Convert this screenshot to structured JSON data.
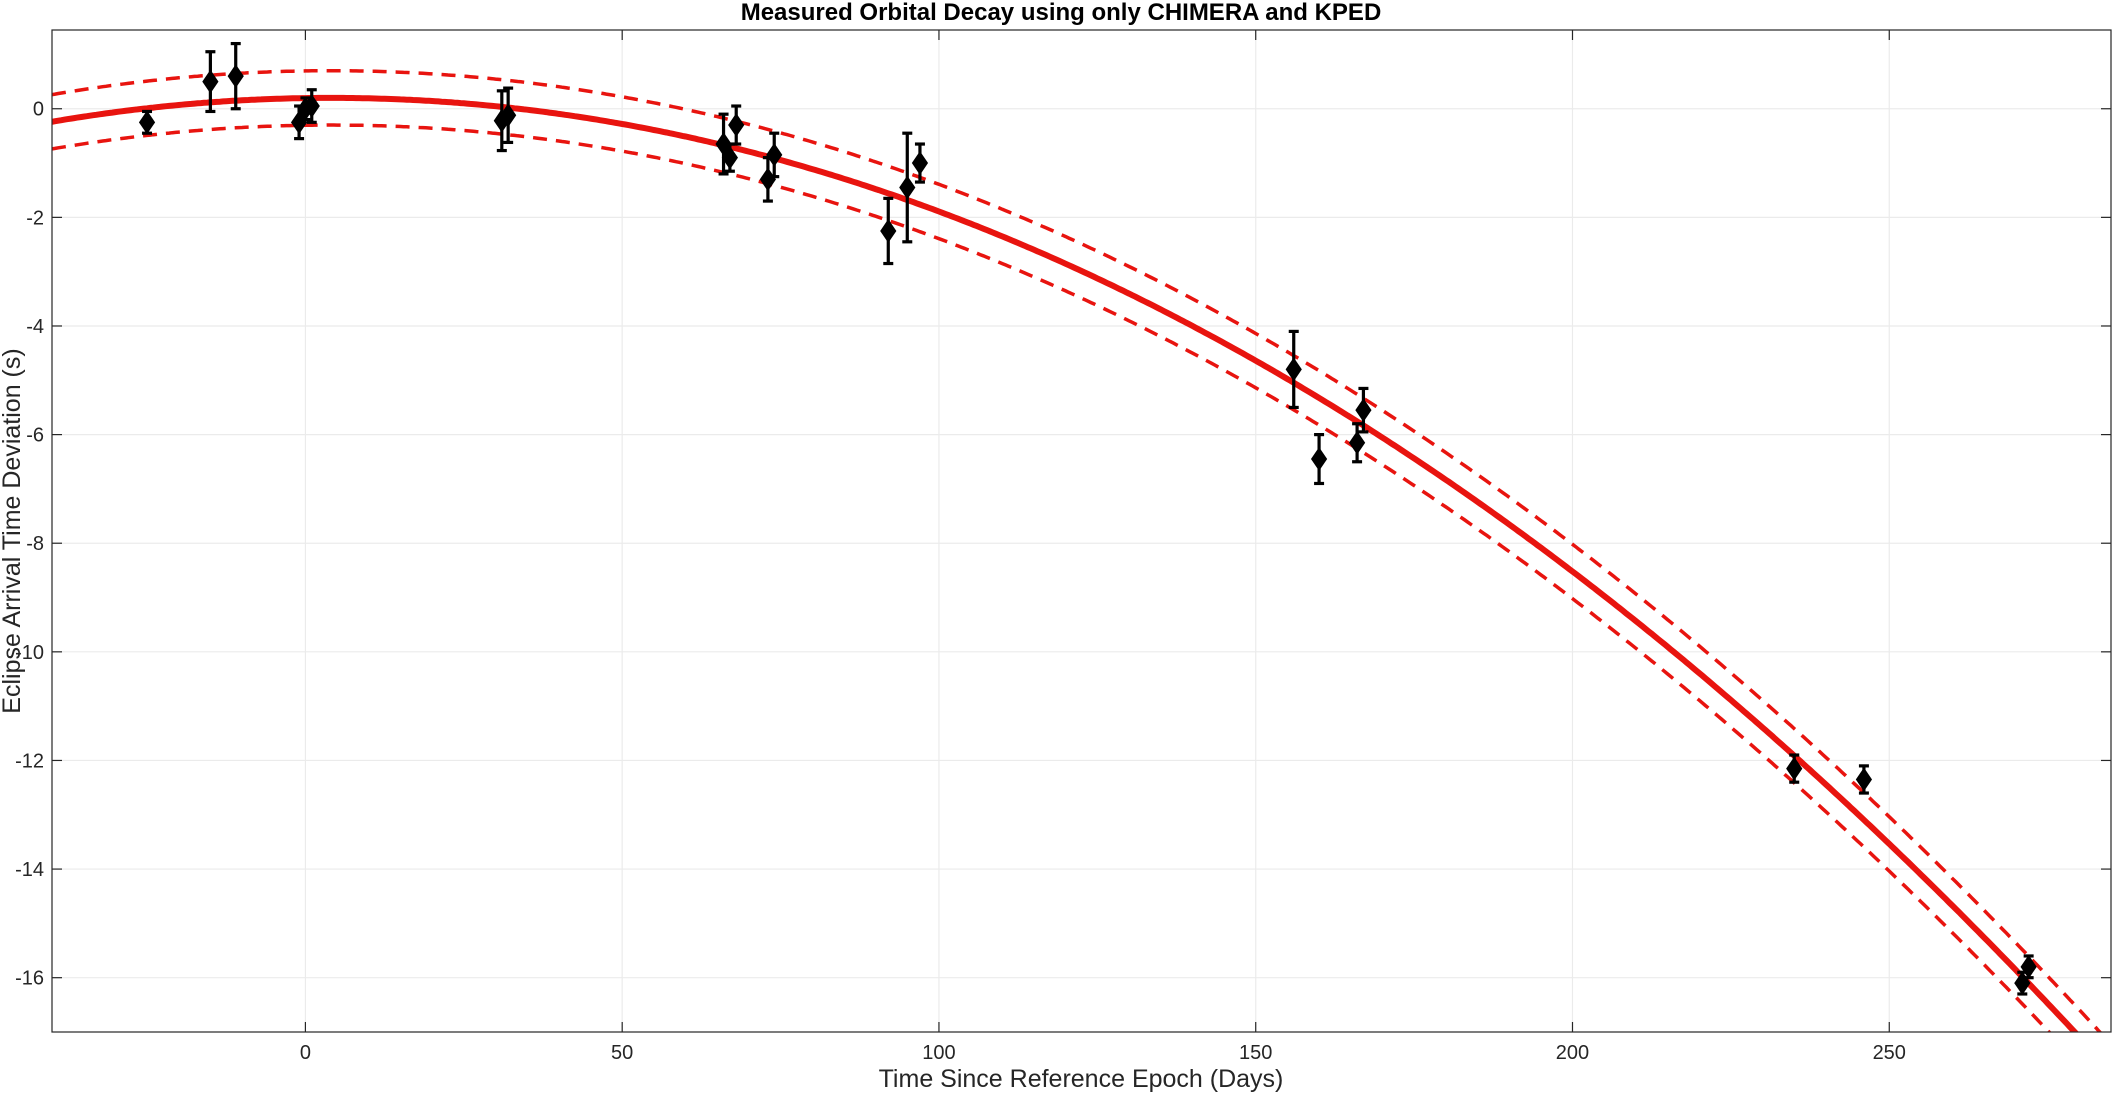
{
  "chart_data": {
    "type": "scatter",
    "title": "Measured Orbital Decay using only CHIMERA and KPED",
    "xlabel": "Time Since Reference Epoch (Days)",
    "ylabel": "Eclipse Arrival Time Deviation (s)",
    "xlim": [
      -40,
      285
    ],
    "ylim": [
      -17,
      1.45
    ],
    "xticks": [
      0,
      50,
      100,
      150,
      200,
      250
    ],
    "yticks": [
      0,
      -2,
      -4,
      -6,
      -8,
      -10,
      -12,
      -14,
      -16
    ],
    "grid": true,
    "colors": {
      "fit": "#e8140f",
      "points": "#000000",
      "grid": "#ebebeb",
      "axes": "#262626"
    },
    "fit": {
      "form": "quadratic",
      "peak_x": 4,
      "peak_y": 0.2,
      "curvature": -0.000227,
      "band_halfwidth_s": 0.5,
      "styles": {
        "fit": "solid",
        "band": "dashed"
      }
    },
    "points": [
      {
        "x": -25,
        "y": -0.25,
        "err": 0.2
      },
      {
        "x": -15,
        "y": 0.5,
        "err": 0.55
      },
      {
        "x": -11,
        "y": 0.6,
        "err": 0.6
      },
      {
        "x": -1,
        "y": -0.25,
        "err": 0.3
      },
      {
        "x": 0,
        "y": 0.0,
        "err": 0.2
      },
      {
        "x": 1,
        "y": 0.05,
        "err": 0.3
      },
      {
        "x": 31,
        "y": -0.22,
        "err": 0.55
      },
      {
        "x": 32,
        "y": -0.12,
        "err": 0.5
      },
      {
        "x": 66,
        "y": -0.65,
        "err": 0.55
      },
      {
        "x": 67,
        "y": -0.9,
        "err": 0.25
      },
      {
        "x": 68,
        "y": -0.3,
        "err": 0.35
      },
      {
        "x": 73,
        "y": -1.3,
        "err": 0.4
      },
      {
        "x": 74,
        "y": -0.85,
        "err": 0.4
      },
      {
        "x": 92,
        "y": -2.25,
        "err": 0.6
      },
      {
        "x": 95,
        "y": -1.45,
        "err": 1.0
      },
      {
        "x": 97,
        "y": -1.0,
        "err": 0.35
      },
      {
        "x": 156,
        "y": -4.8,
        "err": 0.7
      },
      {
        "x": 160,
        "y": -6.45,
        "err": 0.45
      },
      {
        "x": 166,
        "y": -6.15,
        "err": 0.35
      },
      {
        "x": 167,
        "y": -5.55,
        "err": 0.4
      },
      {
        "x": 235,
        "y": -12.15,
        "err": 0.25
      },
      {
        "x": 246,
        "y": -12.35,
        "err": 0.25
      },
      {
        "x": 271,
        "y": -16.1,
        "err": 0.2
      },
      {
        "x": 272,
        "y": -15.8,
        "err": 0.2
      }
    ]
  }
}
